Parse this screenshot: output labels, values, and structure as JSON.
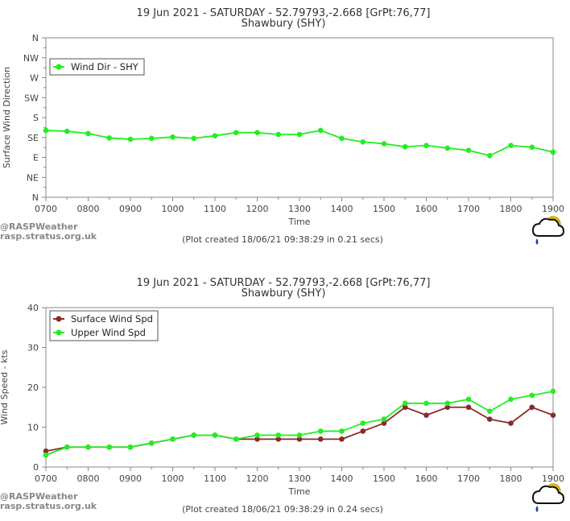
{
  "chart_data": [
    {
      "type": "line",
      "title": "19 Jun 2021 - SATURDAY - 52.79793,-2.668 [GrPt:76,77]",
      "subtitle": "Shawbury (SHY)",
      "xlabel": "Time",
      "ylabel": "Surface Wind Direction",
      "x_ticks": [
        "0700",
        "0800",
        "0900",
        "1000",
        "1100",
        "1200",
        "1300",
        "1400",
        "1500",
        "1600",
        "1700",
        "1800",
        "1900"
      ],
      "y_tick_labels": [
        "N",
        "NE",
        "E",
        "SE",
        "S",
        "SW",
        "W",
        "NW",
        "N"
      ],
      "ylim": [
        0,
        360
      ],
      "xlim": [
        7,
        19
      ],
      "legend": "top-left",
      "grid": false,
      "footnote": "(Plot created 18/06/21 09:38:29 in 0.21 secs)",
      "x": [
        7.0,
        7.5,
        8.0,
        8.5,
        9.0,
        9.5,
        10.0,
        10.5,
        11.0,
        11.5,
        12.0,
        12.5,
        13.0,
        13.5,
        14.0,
        14.5,
        15.0,
        15.5,
        16.0,
        16.5,
        17.0,
        17.5,
        18.0,
        18.5,
        19.0
      ],
      "series": [
        {
          "name": "Wind Dir - SHY",
          "color": "#22ee22",
          "values": [
            151,
            149,
            144,
            134,
            131,
            133,
            136,
            133,
            139,
            146,
            146,
            142,
            142,
            151,
            133,
            125,
            121,
            114,
            117,
            111,
            106,
            94,
            117,
            113,
            102
          ]
        }
      ]
    },
    {
      "type": "line",
      "title": "19 Jun 2021 - SATURDAY - 52.79793,-2.668 [GrPt:76,77]",
      "subtitle": "Shawbury (SHY)",
      "xlabel": "Time",
      "ylabel": "Wind Speed - kts",
      "x_ticks": [
        "0700",
        "0800",
        "0900",
        "1000",
        "1100",
        "1200",
        "1300",
        "1400",
        "1500",
        "1600",
        "1700",
        "1800",
        "1900"
      ],
      "y_ticks": [
        0,
        10,
        20,
        30,
        40
      ],
      "ylim": [
        0,
        40
      ],
      "xlim": [
        7,
        19
      ],
      "legend": "top-left",
      "grid": false,
      "footnote": "(Plot created 18/06/21 09:38:29 in 0.24 secs)",
      "x": [
        7.0,
        7.5,
        8.0,
        8.5,
        9.0,
        9.5,
        10.0,
        10.5,
        11.0,
        11.5,
        12.0,
        12.5,
        13.0,
        13.5,
        14.0,
        14.5,
        15.0,
        15.5,
        16.0,
        16.5,
        17.0,
        17.5,
        18.0,
        18.5,
        19.0
      ],
      "series": [
        {
          "name": "Surface Wind Spd",
          "color": "#8b2a2a",
          "values": [
            4,
            5,
            5,
            5,
            5,
            6,
            7,
            8,
            8,
            7,
            7,
            7,
            7,
            7,
            7,
            9,
            11,
            15,
            13,
            15,
            15,
            12,
            11,
            15,
            13
          ]
        },
        {
          "name": "Upper Wind Spd",
          "color": "#22ee22",
          "values": [
            3,
            5,
            5,
            5,
            5,
            6,
            7,
            8,
            8,
            7,
            8,
            8,
            8,
            9,
            9,
            11,
            12,
            16,
            16,
            16,
            17,
            14,
            17,
            18,
            19
          ]
        }
      ]
    }
  ],
  "credits": {
    "line1": "@RASPWeather",
    "line2": "rasp.stratus.org.uk"
  },
  "logo_icon": "rasp-cloud-sun-icon"
}
